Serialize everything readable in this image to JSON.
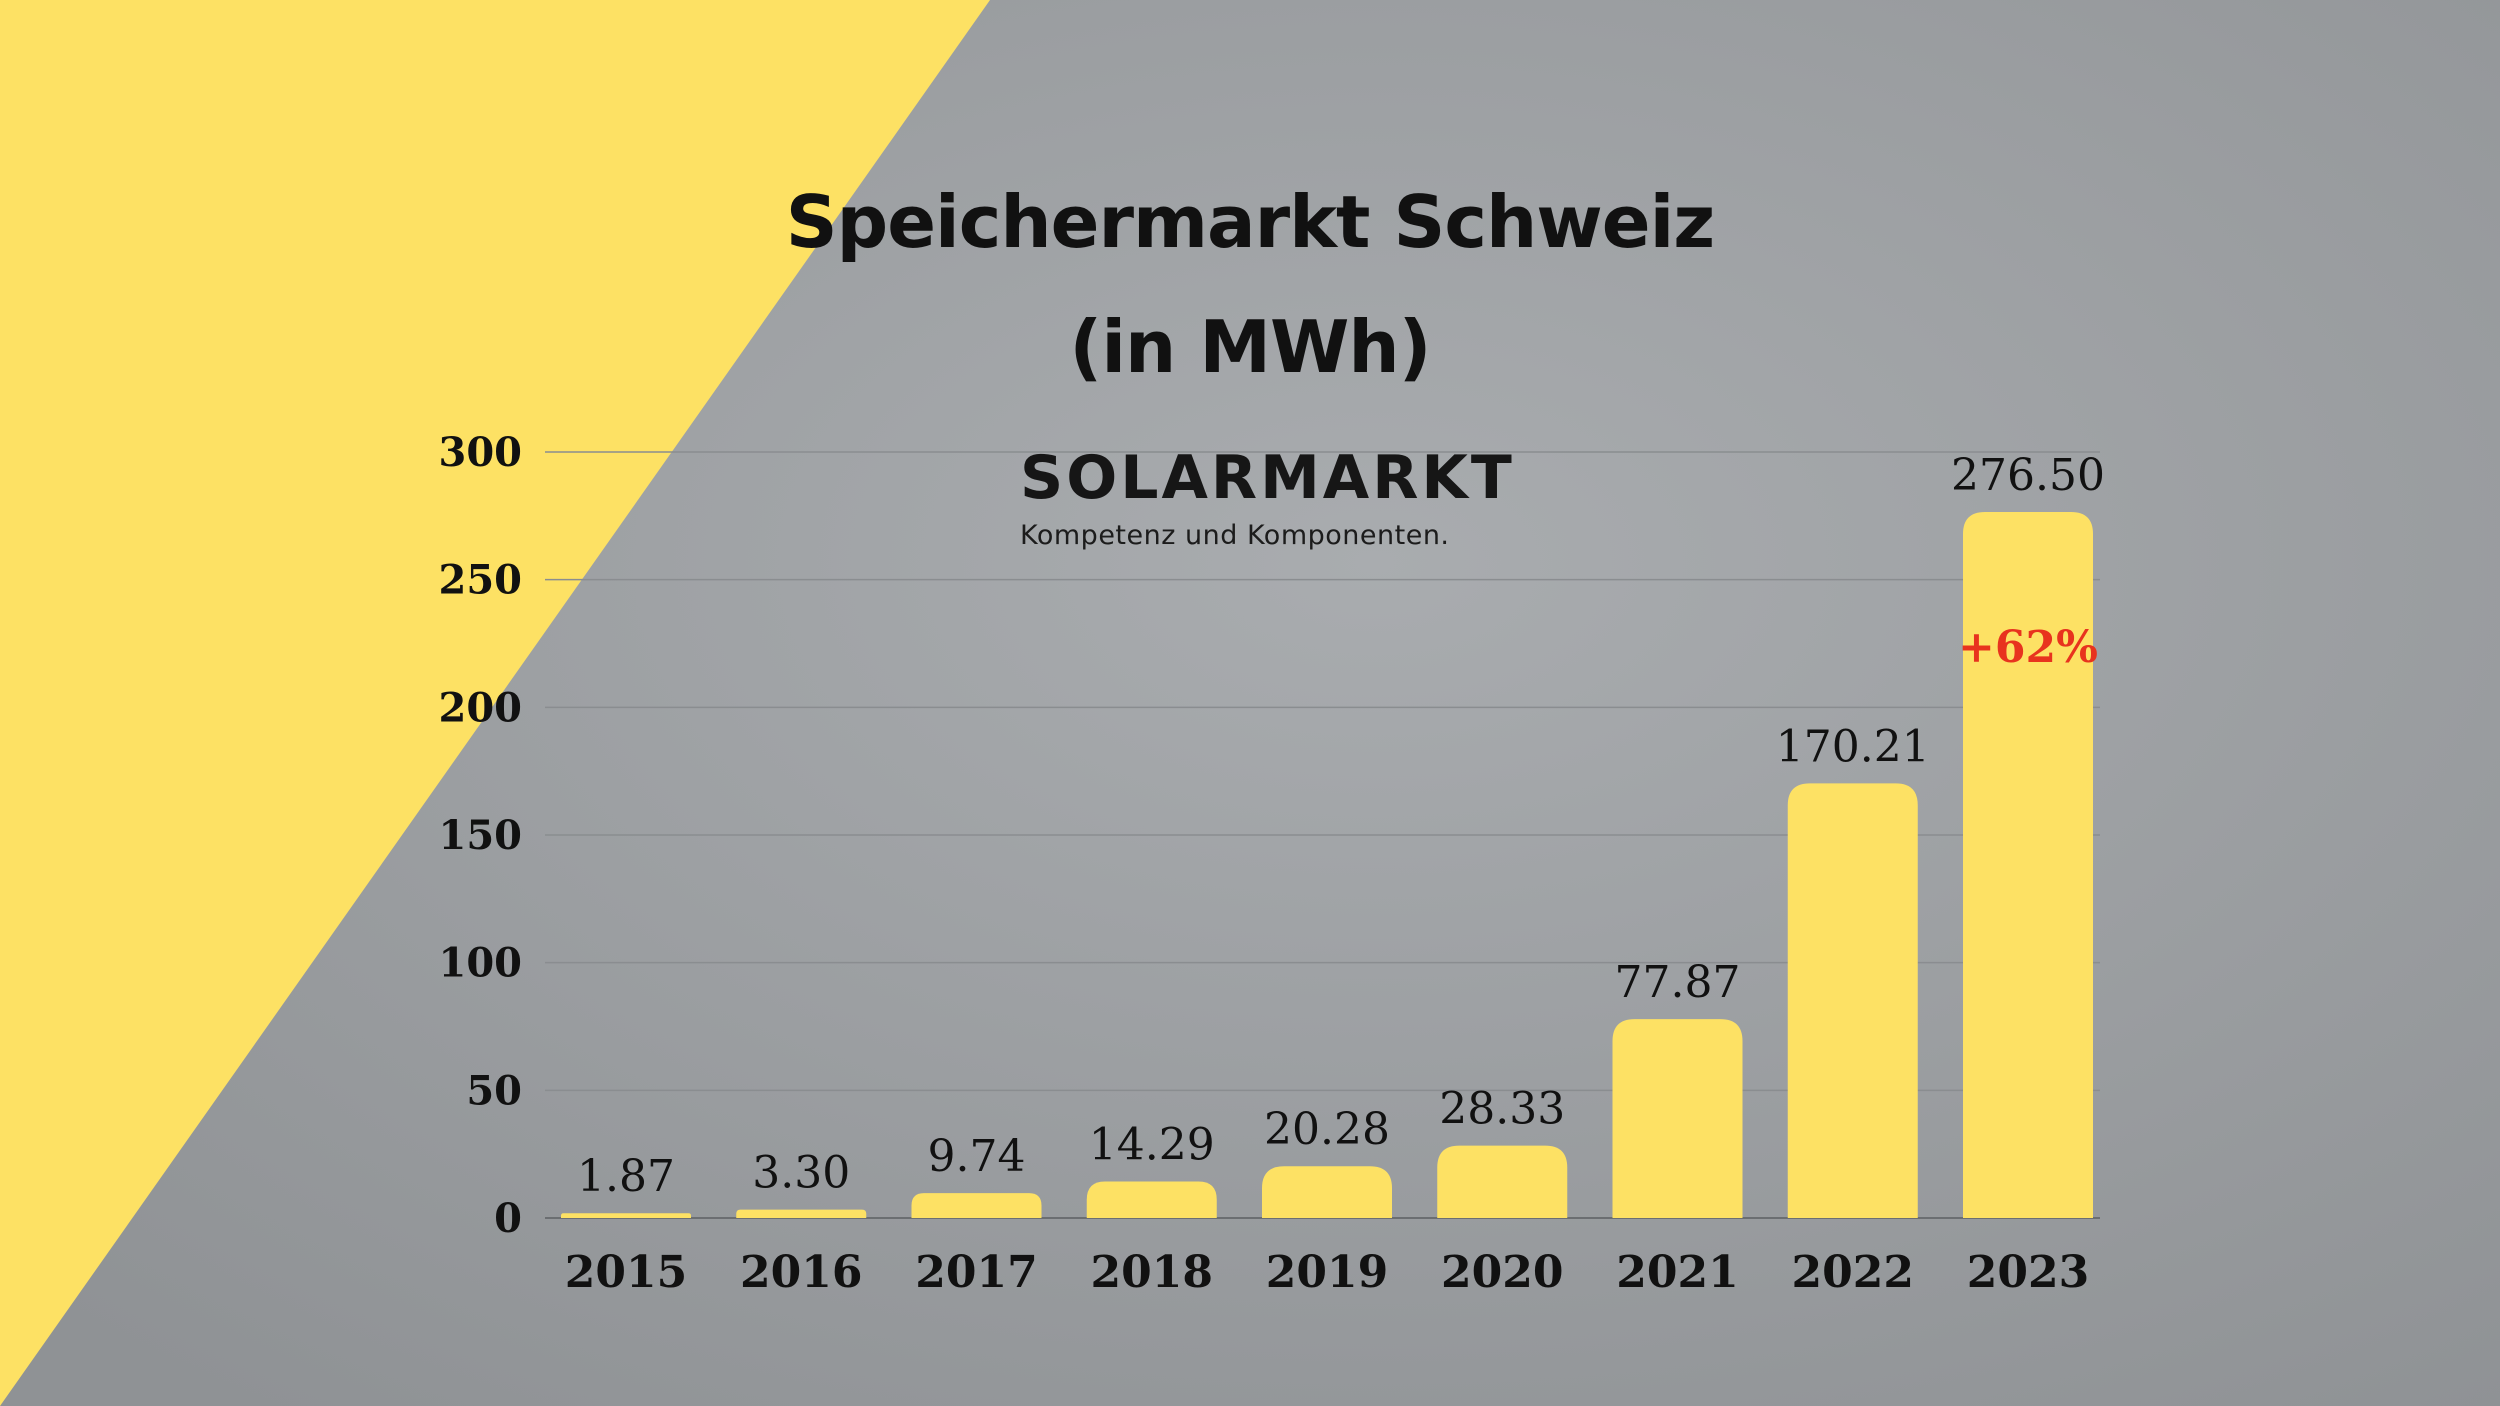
{
  "colors": {
    "accent_yellow": "#fde164",
    "background_gray": "#9ea1a4",
    "annotation_red": "#e8331e",
    "text": "#111111"
  },
  "title": {
    "line1": "Speichermarkt Schweiz",
    "line2": "(in MWh)"
  },
  "logo": {
    "name": "SOLARMARKT",
    "tagline": "Kompetenz und Komponenten."
  },
  "chart_data": {
    "type": "bar",
    "title": "Speichermarkt Schweiz (in MWh)",
    "categories": [
      "2015",
      "2016",
      "2017",
      "2018",
      "2019",
      "2020",
      "2021",
      "2022",
      "2023"
    ],
    "values": [
      1.87,
      3.3,
      9.74,
      14.29,
      20.28,
      28.33,
      77.87,
      170.21,
      276.5
    ],
    "value_labels": [
      "1.87",
      "3.30",
      "9.74",
      "14.29",
      "20.28",
      "28.33",
      "77.87",
      "170.21",
      "276.50"
    ],
    "yticks": [
      "0",
      "50",
      "100",
      "150",
      "200",
      "250",
      "300"
    ],
    "ylim": [
      0,
      300
    ],
    "grid": true,
    "legend": "none",
    "annotations": [
      {
        "category": "2023",
        "text": "+62%"
      }
    ]
  }
}
